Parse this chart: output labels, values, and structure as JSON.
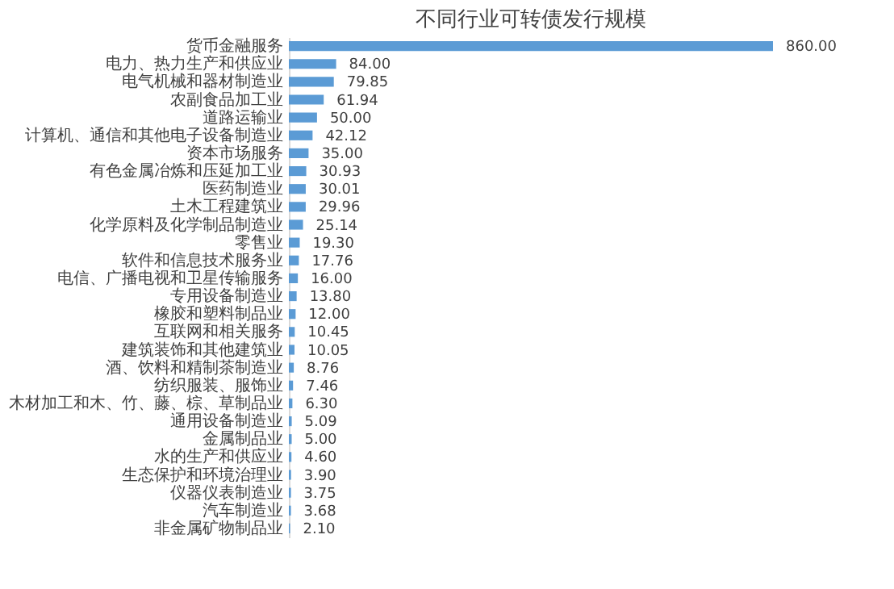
{
  "chart_data": {
    "type": "bar",
    "orientation": "horizontal",
    "title": "不同行业可转债发行规模",
    "categories": [
      "货币金融服务",
      "电力、热力生产和供应业",
      "电气机械和器材制造业",
      "农副食品加工业",
      "道路运输业",
      "计算机、通信和其他电子设备制造业",
      "资本市场服务",
      "有色金属冶炼和压延加工业",
      "医药制造业",
      "土木工程建筑业",
      "化学原料及化学制品制造业",
      "零售业",
      "软件和信息技术服务业",
      "电信、广播电视和卫星传输服务",
      "专用设备制造业",
      "橡胶和塑料制品业",
      "互联网和相关服务",
      "建筑装饰和其他建筑业",
      "酒、饮料和精制茶制造业",
      "纺织服装、服饰业",
      "木材加工和木、竹、藤、棕、草制品业",
      "通用设备制造业",
      "金属制品业",
      "水的生产和供应业",
      "生态保护和环境治理业",
      "仪器仪表制造业",
      "汽车制造业",
      "非金属矿物制品业"
    ],
    "values": [
      860.0,
      84.0,
      79.85,
      61.94,
      50.0,
      42.12,
      35.0,
      30.93,
      30.01,
      29.96,
      25.14,
      19.3,
      17.76,
      16.0,
      13.8,
      12.0,
      10.45,
      10.05,
      8.76,
      7.46,
      6.3,
      5.09,
      5.0,
      4.6,
      3.9,
      3.75,
      3.68,
      2.1
    ],
    "value_labels": [
      "860.00",
      "84.00",
      "79.85",
      "61.94",
      "50.00",
      "42.12",
      "35.00",
      "30.93",
      "30.01",
      "29.96",
      "25.14",
      "19.30",
      "17.76",
      "16.00",
      "13.80",
      "12.00",
      "10.45",
      "10.05",
      "8.76",
      "7.46",
      "6.30",
      "5.09",
      "5.00",
      "4.60",
      "3.90",
      "3.75",
      "3.68",
      "2.10"
    ],
    "color": "#5b9bd5",
    "tick_labels": "y"
  }
}
